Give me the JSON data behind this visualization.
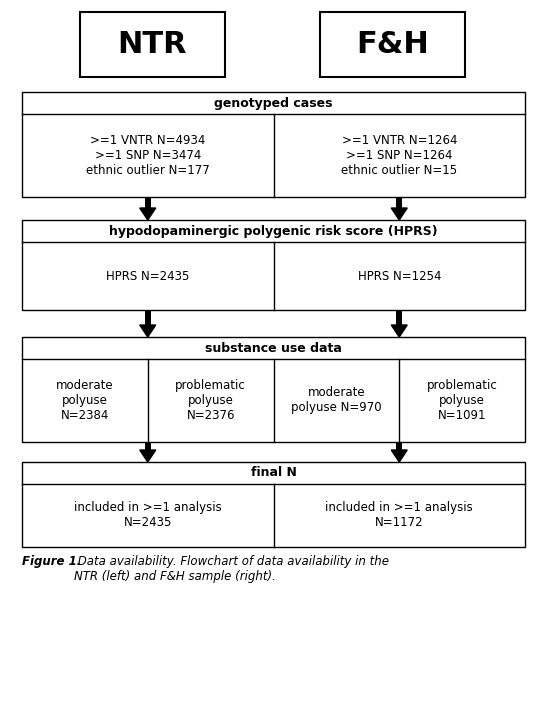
{
  "ntr_label": "NTR",
  "fh_label": "F&H",
  "row1_header": "genotyped cases",
  "row1_left_lines": [
    ">=1 VNTR N=4934",
    ">=1 SNP N=3474",
    "ethnic outlier N=177"
  ],
  "row1_right_lines": [
    ">=1 VNTR N=1264",
    ">=1 SNP N=1264",
    "ethnic outlier N=15"
  ],
  "row2_header": "hypodopaminergic polygenic risk score (HPRS)",
  "row2_left": "HPRS N=2435",
  "row2_right": "HPRS N=1254",
  "row3_header": "substance use data",
  "row3_c1_lines": [
    "moderate",
    "polyuse",
    "N=2384"
  ],
  "row3_c2_lines": [
    "problematic",
    "polyuse",
    "N=2376"
  ],
  "row3_c3_lines": [
    "moderate",
    "polyuse N=970"
  ],
  "row3_c4_lines": [
    "problematic",
    "polyuse",
    "N=1091"
  ],
  "row4_header": "final N",
  "row4_left_lines": [
    "included in >=1 analysis",
    "N=2435"
  ],
  "row4_right_lines": [
    "included in >=1 analysis",
    "N=1172"
  ],
  "caption_bold": "Figure 1.",
  "caption_italic": " Data availability. Flowchart of data availability in the\nNTR (left) and F&H sample (right).",
  "bg_color": "#ffffff",
  "text_color": "#000000"
}
